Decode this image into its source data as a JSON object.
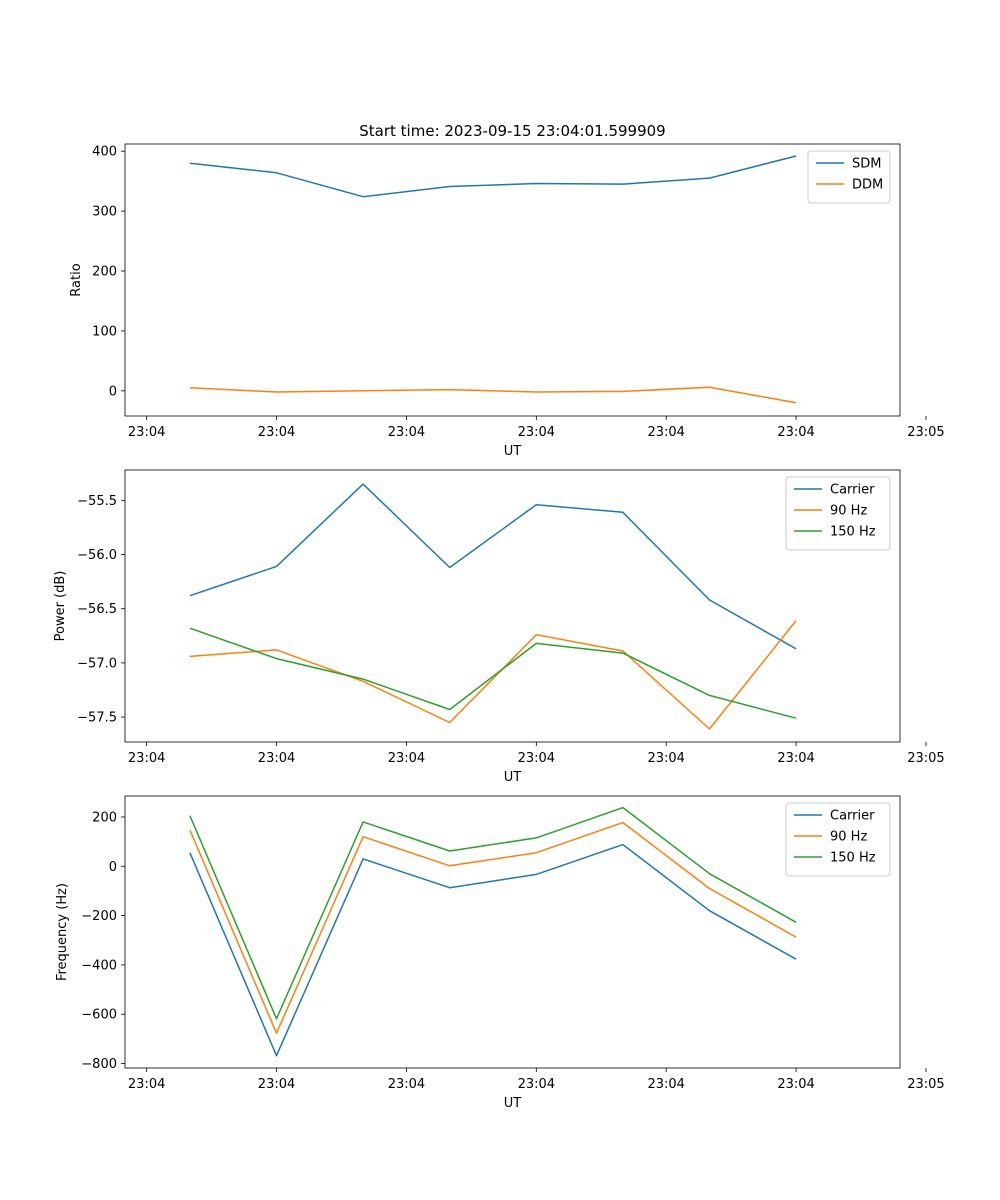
{
  "figure": {
    "title": "Start time: 2023-09-15 23:04:01.599909"
  },
  "chart_data": [
    {
      "type": "line",
      "title": "Start time: 2023-09-15 23:04:01.599909",
      "xlabel": "UT",
      "ylabel": "Ratio",
      "x": [
        1,
        2,
        3,
        4,
        5,
        6,
        7,
        8
      ],
      "xlim": [
        0.25,
        9.2
      ],
      "xticks": [
        0.5,
        2,
        3.5,
        5,
        6.5,
        8,
        9.5
      ],
      "xtick_labels": [
        "23:04",
        "23:04",
        "23:04",
        "23:04",
        "23:04",
        "23:04",
        "23:05"
      ],
      "ylim": [
        -42,
        412
      ],
      "yticks": [
        0,
        100,
        200,
        300,
        400
      ],
      "ytick_labels": [
        "0",
        "100",
        "200",
        "300",
        "400"
      ],
      "legend": "top-right",
      "series": [
        {
          "name": "SDM",
          "color": "#1f77b4",
          "values": [
            380,
            364,
            324,
            341,
            346,
            345,
            355,
            392
          ]
        },
        {
          "name": "DDM",
          "color": "#ff7f0e",
          "values": [
            5,
            -2,
            0,
            2,
            -2,
            -1,
            6,
            -20
          ]
        }
      ]
    },
    {
      "type": "line",
      "title": "",
      "xlabel": "UT",
      "ylabel": "Power (dB)",
      "x": [
        1,
        2,
        3,
        4,
        5,
        6,
        7,
        8
      ],
      "xlim": [
        0.25,
        9.2
      ],
      "xticks": [
        0.5,
        2,
        3.5,
        5,
        6.5,
        8,
        9.5
      ],
      "xtick_labels": [
        "23:04",
        "23:04",
        "23:04",
        "23:04",
        "23:04",
        "23:04",
        "23:05"
      ],
      "ylim": [
        -57.73,
        -55.22
      ],
      "yticks": [
        -57.5,
        -57.0,
        -56.5,
        -56.0,
        -55.5
      ],
      "ytick_labels": [
        "−57.5",
        "−57.0",
        "−56.5",
        "−56.0",
        "−55.5"
      ],
      "legend": "top-right",
      "series": [
        {
          "name": "Carrier",
          "color": "#1f77b4",
          "values": [
            -56.38,
            -56.11,
            -55.35,
            -56.12,
            -55.54,
            -55.61,
            -56.42,
            -56.87
          ]
        },
        {
          "name": "90 Hz",
          "color": "#ff7f0e",
          "values": [
            -56.94,
            -56.88,
            -57.17,
            -57.55,
            -56.74,
            -56.89,
            -57.61,
            -56.61
          ]
        },
        {
          "name": "150 Hz",
          "color": "#2ca02c",
          "values": [
            -56.68,
            -56.96,
            -57.15,
            -57.43,
            -56.82,
            -56.91,
            -57.3,
            -57.51
          ]
        }
      ]
    },
    {
      "type": "line",
      "title": "",
      "xlabel": "UT",
      "ylabel": "Frequency (Hz)",
      "x": [
        1,
        2,
        3,
        4,
        5,
        6,
        7,
        8
      ],
      "xlim": [
        0.25,
        9.2
      ],
      "xticks": [
        0.5,
        2,
        3.5,
        5,
        6.5,
        8,
        9.5
      ],
      "xtick_labels": [
        "23:04",
        "23:04",
        "23:04",
        "23:04",
        "23:04",
        "23:04",
        "23:05"
      ],
      "ylim": [
        -818,
        285
      ],
      "yticks": [
        -800,
        -600,
        -400,
        -200,
        0,
        200
      ],
      "ytick_labels": [
        "−800",
        "−600",
        "−400",
        "−200",
        "0",
        "200"
      ],
      "legend": "top-right",
      "series": [
        {
          "name": "Carrier",
          "color": "#1f77b4",
          "values": [
            55,
            -768,
            30,
            -87,
            -33,
            88,
            -180,
            -377
          ]
        },
        {
          "name": "90 Hz",
          "color": "#ff7f0e",
          "values": [
            147,
            -677,
            120,
            2,
            55,
            177,
            -90,
            -287
          ]
        },
        {
          "name": "150 Hz",
          "color": "#2ca02c",
          "values": [
            205,
            -618,
            180,
            62,
            115,
            238,
            -30,
            -227
          ]
        }
      ]
    }
  ]
}
